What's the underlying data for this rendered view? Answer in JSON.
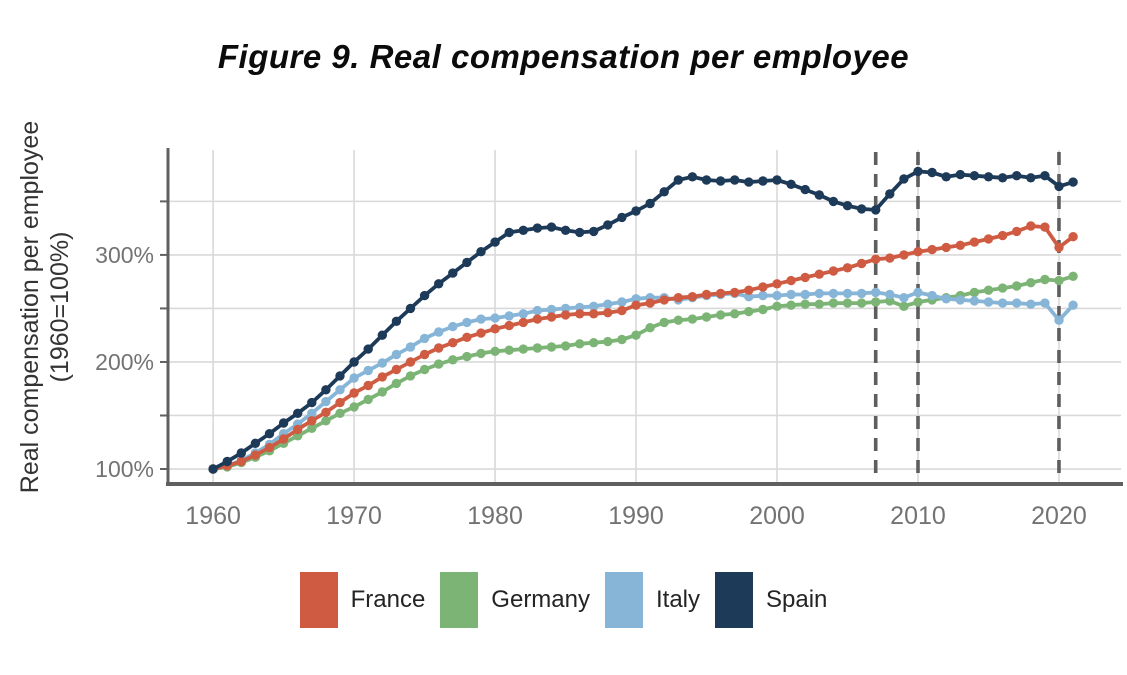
{
  "title": "Figure 9. Real compensation per employee",
  "chart_data": {
    "type": "line",
    "title": "Figure 9. Real compensation per employee",
    "ylabel_line1": "Real compensation per employee",
    "ylabel_line2": "(1960=100%)",
    "xlabel": "",
    "grid": true,
    "legend_position": "bottom",
    "x_axis_range": [
      1956.8,
      2024.4
    ],
    "y_axis_range": [
      86,
      398
    ],
    "y_gridlines": [
      100,
      150,
      200,
      250,
      300,
      350
    ],
    "y_tick_labels": [
      {
        "value": 100,
        "label": "100%"
      },
      {
        "value": 200,
        "label": "200%"
      },
      {
        "value": 300,
        "label": "300%"
      }
    ],
    "x_ticks": [
      {
        "year": 1960,
        "label": "1960"
      },
      {
        "year": 1970,
        "label": "1970"
      },
      {
        "year": 1980,
        "label": "1980"
      },
      {
        "year": 1990,
        "label": "1990"
      },
      {
        "year": 2000,
        "label": "2000"
      },
      {
        "year": 2010,
        "label": "2010"
      },
      {
        "year": 2020,
        "label": "2020"
      }
    ],
    "dashed_marker_years": [
      2007,
      2010,
      2020
    ],
    "years": [
      1960,
      1961,
      1962,
      1963,
      1964,
      1965,
      1966,
      1967,
      1968,
      1969,
      1970,
      1971,
      1972,
      1973,
      1974,
      1975,
      1976,
      1977,
      1978,
      1979,
      1980,
      1981,
      1982,
      1983,
      1984,
      1985,
      1986,
      1987,
      1988,
      1989,
      1990,
      1991,
      1992,
      1993,
      1994,
      1995,
      1996,
      1997,
      1998,
      1999,
      2000,
      2001,
      2002,
      2003,
      2004,
      2005,
      2006,
      2007,
      2008,
      2009,
      2010,
      2011,
      2012,
      2013,
      2014,
      2015,
      2016,
      2017,
      2018,
      2019,
      2020,
      2021
    ],
    "series": [
      {
        "name": "France",
        "color": "#cf5c42",
        "values": [
          100,
          103,
          107,
          113,
          120,
          128,
          137,
          145,
          153,
          162,
          171,
          178,
          186,
          193,
          200,
          207,
          213,
          218,
          223,
          227,
          231,
          234,
          237,
          240,
          242,
          244,
          245,
          245,
          246,
          248,
          253,
          255,
          258,
          260,
          261,
          263,
          264,
          265,
          267,
          270,
          273,
          276,
          279,
          282,
          285,
          288,
          292,
          296,
          297,
          300,
          303,
          305,
          307,
          309,
          312,
          315,
          318,
          322,
          327,
          326,
          307,
          317
        ]
      },
      {
        "name": "Germany",
        "color": "#7cb476",
        "values": [
          100,
          102,
          106,
          111,
          117,
          124,
          131,
          138,
          145,
          152,
          158,
          165,
          172,
          180,
          187,
          193,
          198,
          202,
          205,
          208,
          210,
          211,
          212,
          213,
          214,
          215,
          217,
          218,
          219,
          221,
          225,
          232,
          237,
          239,
          240,
          242,
          244,
          245,
          247,
          249,
          252,
          253,
          254,
          254,
          255,
          255,
          255,
          256,
          257,
          252,
          256,
          258,
          260,
          262,
          265,
          267,
          269,
          271,
          274,
          277,
          276,
          280
        ]
      },
      {
        "name": "Italy",
        "color": "#86b5d7",
        "values": [
          100,
          103,
          108,
          115,
          123,
          133,
          142,
          152,
          163,
          174,
          185,
          192,
          199,
          207,
          214,
          222,
          228,
          233,
          237,
          240,
          241,
          243,
          245,
          248,
          249,
          250,
          251,
          252,
          254,
          256,
          259,
          260,
          260,
          258,
          260,
          262,
          263,
          264,
          261,
          262,
          262,
          263,
          263,
          264,
          264,
          264,
          264,
          265,
          263,
          260,
          265,
          262,
          259,
          258,
          257,
          256,
          255,
          255,
          254,
          255,
          239,
          253
        ]
      },
      {
        "name": "Spain",
        "color": "#1d3a59",
        "values": [
          100,
          107,
          115,
          124,
          133,
          143,
          152,
          162,
          174,
          187,
          200,
          212,
          225,
          238,
          250,
          262,
          273,
          283,
          293,
          303,
          312,
          321,
          323,
          325,
          326,
          323,
          321,
          322,
          328,
          335,
          341,
          348,
          359,
          370,
          373,
          370,
          369,
          370,
          368,
          369,
          370,
          366,
          361,
          356,
          350,
          346,
          343,
          342,
          357,
          371,
          378,
          377,
          373,
          375,
          374,
          373,
          372,
          374,
          372,
          374,
          364,
          368
        ]
      }
    ],
    "colors": {
      "gridline": "#d9d9d9",
      "axis": "#606060",
      "dashed_marker": "#5e5e5e",
      "tick_label": "#737373",
      "axis_title": "#333333"
    }
  }
}
